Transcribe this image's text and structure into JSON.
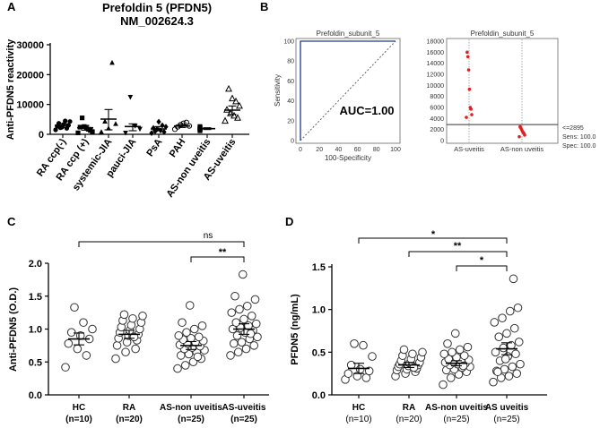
{
  "panels": {
    "A": {
      "letter": "A",
      "title": "Prefoldin 5 (PFDN5)",
      "subtitle": "NM_002624.3",
      "ylabel": "Anti-PFDN5 reactivity",
      "yticks": [
        "0",
        "10000",
        "20000",
        "30000"
      ],
      "categories": [
        "RA ccp(-)",
        "RA ccp (+)",
        "systemic-JIA",
        "pauci-JIA",
        "PsA",
        "PAH",
        "AS-non uveitis",
        "AS-uveitis"
      ]
    },
    "B": {
      "letter": "B",
      "roc_title": "Prefoldin_subunit_5",
      "roc_xlabel": "100-Specificity",
      "roc_ylabel": "Sensitivity",
      "roc_ticks": [
        "0",
        "20",
        "40",
        "60",
        "80",
        "100"
      ],
      "auc_label": "AUC=1.00",
      "dot_title": "Prefoldin_subunit_5",
      "dot_yticks": [
        "0",
        "2000",
        "4000",
        "6000",
        "8000",
        "10000",
        "12000",
        "14000",
        "16000",
        "18000"
      ],
      "dot_categories": [
        "AS-uveitis",
        "AS-non uveitis"
      ],
      "cutoff_label": "<=2895",
      "sens_label": "Sens: 100.0",
      "spec_label": "Spec: 100.0"
    },
    "C": {
      "letter": "C",
      "ylabel": "Anti-PFDN5 (O.D.)",
      "yticks": [
        "0.0",
        "0.5",
        "1.0",
        "1.5",
        "2.0"
      ],
      "categories": [
        "HC",
        "RA",
        "AS-non uveitis",
        "AS-uveitis"
      ],
      "ns": [
        "(n=10)",
        "(n=20)",
        "(n=25)",
        "(n=25)"
      ],
      "sig_ns": "ns",
      "sig_2": "**"
    },
    "D": {
      "letter": "D",
      "ylabel": "PFDN5 (ng/mL)",
      "yticks": [
        "0.0",
        "0.5",
        "1.0",
        "1.5"
      ],
      "categories": [
        "HC",
        "RA",
        "AS-non uveitis",
        "AS uveitis"
      ],
      "ns": [
        "(n=10)",
        "(n=20)",
        "(n=25)",
        "(n=25)"
      ],
      "sig_1": "*",
      "sig_2": "**",
      "sig_3": "*"
    }
  },
  "chart_data": [
    {
      "type": "scatter",
      "panel": "A",
      "title": "Prefoldin 5 (PFDN5)",
      "ylabel": "Anti-PFDN5 reactivity",
      "ylim": [
        0,
        30000
      ],
      "series": [
        {
          "name": "RA ccp(-)",
          "values": [
            1500,
            2000,
            2400,
            2700,
            3000,
            3300,
            3700,
            4300,
            4500,
            2200
          ],
          "mean": 3000,
          "sem_lo": 2300,
          "sem_hi": 3600
        },
        {
          "name": "RA ccp (+)",
          "values": [
            500,
            900,
            1300,
            1700,
            2100,
            2600,
            5500,
            2400
          ],
          "mean": 2200,
          "sem_lo": 1400,
          "sem_hi": 3000
        },
        {
          "name": "systemic-JIA",
          "values": [
            800,
            2000,
            3500,
            4300,
            24000
          ],
          "mean": 5100,
          "sem_lo": 1500,
          "sem_hi": 8300
        },
        {
          "name": "pauci-JIA",
          "values": [
            500,
            1800,
            2800,
            12500
          ],
          "mean": 2600,
          "sem_lo": 1200,
          "sem_hi": 3500
        },
        {
          "name": "PsA",
          "values": [
            400,
            800,
            1300,
            1700,
            2100,
            2500,
            3000,
            4200,
            1000
          ],
          "mean": 1800,
          "sem_lo": 1200,
          "sem_hi": 2600
        },
        {
          "name": "PAH",
          "values": [
            1700,
            2500,
            3200,
            3700,
            4000,
            2800
          ],
          "mean": 2800,
          "sem_lo": 2300,
          "sem_hi": 3300
        },
        {
          "name": "AS-non uveitis",
          "values": [
            1200,
            1500,
            1700,
            2000,
            2300,
            2600,
            1800
          ],
          "mean": 1900,
          "sem_lo": 1600,
          "sem_hi": 2200
        },
        {
          "name": "AS-uveitis",
          "values": [
            4500,
            5500,
            6200,
            7000,
            8200,
            9500,
            11000,
            12000,
            15200
          ],
          "mean": 8100,
          "sem_lo": 6700,
          "sem_hi": 9500
        }
      ]
    },
    {
      "type": "line",
      "panel": "B-roc",
      "title": "Prefoldin_subunit_5",
      "xlabel": "100-Specificity",
      "ylabel": "Sensitivity",
      "xlim": [
        0,
        100
      ],
      "ylim": [
        0,
        100
      ],
      "roc": {
        "x": [
          0,
          0,
          100
        ],
        "y": [
          0,
          100,
          100
        ]
      },
      "reference": {
        "x": [
          0,
          100
        ],
        "y": [
          0,
          100
        ]
      },
      "auc": 1.0
    },
    {
      "type": "scatter",
      "panel": "B-dot",
      "title": "Prefoldin_subunit_5",
      "ylim": [
        0,
        18000
      ],
      "cutoff": 2895,
      "series": [
        {
          "name": "AS-uveitis",
          "values": [
            4200,
            4700,
            5700,
            6000,
            9300,
            12800,
            15200,
            16000
          ]
        },
        {
          "name": "AS-non uveitis",
          "values": [
            700,
            1000,
            1300,
            1500,
            1700,
            2000,
            2300,
            2500
          ]
        }
      ]
    },
    {
      "type": "scatter",
      "panel": "C",
      "ylabel": "Anti-PFDN5 (O.D.)",
      "ylim": [
        0,
        2.0
      ],
      "series": [
        {
          "name": "HC",
          "values": [
            0.42,
            0.6,
            0.7,
            0.78,
            0.85,
            0.9,
            0.95,
            1.0,
            1.1,
            1.33
          ],
          "mean": 0.85,
          "sem_lo": 0.76,
          "sem_hi": 0.94
        },
        {
          "name": "RA",
          "values": [
            0.55,
            0.65,
            0.7,
            0.75,
            0.8,
            0.83,
            0.86,
            0.9,
            0.92,
            0.95,
            0.98,
            1.0,
            1.03,
            1.06,
            1.1,
            1.13,
            1.16,
            1.2,
            1.22,
            0.88
          ],
          "mean": 0.92,
          "sem_lo": 0.86,
          "sem_hi": 0.98
        },
        {
          "name": "AS-non uveitis",
          "values": [
            0.4,
            0.45,
            0.5,
            0.55,
            0.6,
            0.62,
            0.65,
            0.68,
            0.7,
            0.72,
            0.74,
            0.76,
            0.78,
            0.8,
            0.82,
            0.84,
            0.86,
            0.88,
            0.9,
            0.95,
            1.0,
            1.05,
            1.1,
            1.36,
            0.58
          ],
          "mean": 0.75,
          "sem_lo": 0.69,
          "sem_hi": 0.81
        },
        {
          "name": "AS-uveitis",
          "values": [
            0.6,
            0.65,
            0.7,
            0.75,
            0.78,
            0.8,
            0.85,
            0.88,
            0.9,
            0.95,
            0.98,
            1.0,
            1.02,
            1.05,
            1.08,
            1.1,
            1.15,
            1.2,
            1.25,
            1.3,
            1.35,
            1.45,
            1.5,
            1.83,
            0.93
          ],
          "mean": 1.0,
          "sem_lo": 0.92,
          "sem_hi": 1.08
        }
      ],
      "significance": [
        {
          "from": "HC",
          "to": "AS-uveitis",
          "label": "ns"
        },
        {
          "from": "AS-non uveitis",
          "to": "AS-uveitis",
          "label": "**"
        }
      ]
    },
    {
      "type": "scatter",
      "panel": "D",
      "ylabel": "PFDN5 (ng/mL)",
      "ylim": [
        0,
        1.5
      ],
      "series": [
        {
          "name": "HC",
          "values": [
            0.18,
            0.2,
            0.22,
            0.25,
            0.28,
            0.3,
            0.35,
            0.45,
            0.58,
            0.6
          ],
          "mean": 0.31,
          "sem_lo": 0.25,
          "sem_hi": 0.37
        },
        {
          "name": "RA",
          "values": [
            0.22,
            0.25,
            0.27,
            0.29,
            0.3,
            0.31,
            0.33,
            0.34,
            0.35,
            0.36,
            0.37,
            0.38,
            0.4,
            0.42,
            0.44,
            0.46,
            0.48,
            0.5,
            0.53,
            0.32
          ],
          "mean": 0.35,
          "sem_lo": 0.32,
          "sem_hi": 0.38
        },
        {
          "name": "AS-non uveitis",
          "values": [
            0.12,
            0.2,
            0.24,
            0.27,
            0.29,
            0.3,
            0.32,
            0.33,
            0.35,
            0.36,
            0.37,
            0.38,
            0.39,
            0.4,
            0.41,
            0.42,
            0.44,
            0.46,
            0.48,
            0.5,
            0.53,
            0.56,
            0.6,
            0.72,
            0.34
          ],
          "mean": 0.37,
          "sem_lo": 0.34,
          "sem_hi": 0.4
        },
        {
          "name": "AS uveitis",
          "values": [
            0.15,
            0.2,
            0.22,
            0.25,
            0.28,
            0.3,
            0.33,
            0.36,
            0.4,
            0.45,
            0.48,
            0.5,
            0.55,
            0.58,
            0.62,
            0.68,
            0.72,
            0.78,
            0.85,
            0.9,
            0.98,
            1.02,
            0.27,
            0.42,
            1.36
          ],
          "mean": 0.54,
          "sem_lo": 0.47,
          "sem_hi": 0.61
        }
      ],
      "significance": [
        {
          "from": "HC",
          "to": "AS uveitis",
          "label": "*"
        },
        {
          "from": "RA",
          "to": "AS uveitis",
          "label": "**"
        },
        {
          "from": "AS-non uveitis",
          "to": "AS uveitis",
          "label": "*"
        }
      ]
    }
  ]
}
